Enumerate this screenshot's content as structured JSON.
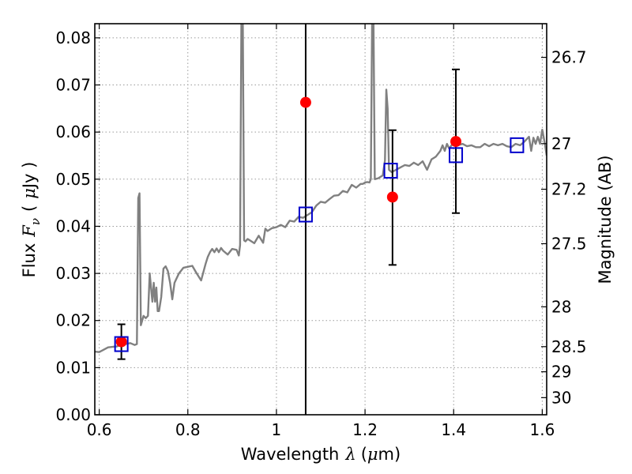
{
  "chart_data": {
    "type": "scatter",
    "xlabel": {
      "prefix": "Wavelength",
      "symbol": "λ",
      "unit_open": "(",
      "unit_mu": "μ",
      "unit_rest": "m)"
    },
    "ylabel": {
      "prefix": "Flux",
      "symbol": "F",
      "symbol_sub": "ν",
      "unit_open": "(",
      "unit_mu": "μ",
      "unit_rest": "Jy )"
    },
    "y2label": "Magnitude (AB)",
    "xlim": [
      0.59,
      1.61
    ],
    "ylim": [
      0.0,
      0.083
    ],
    "grid": true,
    "x_ticks": [
      {
        "value": 0.6,
        "label": "0.6"
      },
      {
        "value": 0.8,
        "label": "0.8"
      },
      {
        "value": 1.0,
        "label": "1"
      },
      {
        "value": 1.2,
        "label": "1.2"
      },
      {
        "value": 1.4,
        "label": "1.4"
      },
      {
        "value": 1.6,
        "label": "1.6"
      }
    ],
    "y_ticks": [
      {
        "value": 0.0,
        "label": "0.00"
      },
      {
        "value": 0.01,
        "label": "0.01"
      },
      {
        "value": 0.02,
        "label": "0.02"
      },
      {
        "value": 0.03,
        "label": "0.03"
      },
      {
        "value": 0.04,
        "label": "0.04"
      },
      {
        "value": 0.05,
        "label": "0.05"
      },
      {
        "value": 0.06,
        "label": "0.06"
      },
      {
        "value": 0.07,
        "label": "0.07"
      },
      {
        "value": 0.08,
        "label": "0.08"
      }
    ],
    "y2_ticks": [
      {
        "value": 26.7,
        "label": "26.7"
      },
      {
        "value": 27.0,
        "label": "27"
      },
      {
        "value": 27.2,
        "label": "27.2"
      },
      {
        "value": 27.5,
        "label": "27.5"
      },
      {
        "value": 28.0,
        "label": "28"
      },
      {
        "value": 28.5,
        "label": "28.5"
      },
      {
        "value": 29.0,
        "label": "29"
      },
      {
        "value": 30.0,
        "label": "30"
      }
    ],
    "vertical_line_x": 1.066,
    "sed_model": [
      [
        0.59,
        0.0134
      ],
      [
        0.6,
        0.0133
      ],
      [
        0.61,
        0.0138
      ],
      [
        0.62,
        0.0143
      ],
      [
        0.63,
        0.0144
      ],
      [
        0.64,
        0.0145
      ],
      [
        0.65,
        0.0149
      ],
      [
        0.66,
        0.015
      ],
      [
        0.67,
        0.0152
      ],
      [
        0.68,
        0.0148
      ],
      [
        0.685,
        0.015
      ],
      [
        0.688,
        0.046
      ],
      [
        0.691,
        0.047
      ],
      [
        0.694,
        0.019
      ],
      [
        0.7,
        0.021
      ],
      [
        0.705,
        0.0205
      ],
      [
        0.71,
        0.021
      ],
      [
        0.714,
        0.03
      ],
      [
        0.717,
        0.027
      ],
      [
        0.72,
        0.024
      ],
      [
        0.723,
        0.028
      ],
      [
        0.726,
        0.024
      ],
      [
        0.729,
        0.027
      ],
      [
        0.732,
        0.022
      ],
      [
        0.735,
        0.022
      ],
      [
        0.74,
        0.025
      ],
      [
        0.745,
        0.031
      ],
      [
        0.75,
        0.0315
      ],
      [
        0.755,
        0.0305
      ],
      [
        0.76,
        0.028
      ],
      [
        0.765,
        0.0245
      ],
      [
        0.77,
        0.028
      ],
      [
        0.775,
        0.029
      ],
      [
        0.78,
        0.03
      ],
      [
        0.79,
        0.0312
      ],
      [
        0.8,
        0.0314
      ],
      [
        0.81,
        0.0316
      ],
      [
        0.82,
        0.03
      ],
      [
        0.83,
        0.0285
      ],
      [
        0.84,
        0.032
      ],
      [
        0.845,
        0.0335
      ],
      [
        0.85,
        0.0345
      ],
      [
        0.855,
        0.0352
      ],
      [
        0.86,
        0.0345
      ],
      [
        0.865,
        0.0353
      ],
      [
        0.87,
        0.0345
      ],
      [
        0.875,
        0.0354
      ],
      [
        0.88,
        0.0348
      ],
      [
        0.89,
        0.034
      ],
      [
        0.9,
        0.0352
      ],
      [
        0.91,
        0.035
      ],
      [
        0.915,
        0.0338
      ],
      [
        0.918,
        0.036
      ],
      [
        0.921,
        0.085
      ],
      [
        0.924,
        0.085
      ],
      [
        0.927,
        0.037
      ],
      [
        0.93,
        0.0368
      ],
      [
        0.935,
        0.0373
      ],
      [
        0.94,
        0.037
      ],
      [
        0.95,
        0.0364
      ],
      [
        0.96,
        0.038
      ],
      [
        0.97,
        0.0365
      ],
      [
        0.975,
        0.0395
      ],
      [
        0.98,
        0.039
      ],
      [
        0.99,
        0.0396
      ],
      [
        1.0,
        0.0398
      ],
      [
        1.01,
        0.0403
      ],
      [
        1.02,
        0.0398
      ],
      [
        1.03,
        0.0412
      ],
      [
        1.04,
        0.041
      ],
      [
        1.05,
        0.042
      ],
      [
        1.06,
        0.0418
      ],
      [
        1.07,
        0.0424
      ],
      [
        1.08,
        0.043
      ],
      [
        1.09,
        0.0444
      ],
      [
        1.1,
        0.0452
      ],
      [
        1.11,
        0.045
      ],
      [
        1.12,
        0.0458
      ],
      [
        1.13,
        0.0465
      ],
      [
        1.14,
        0.0466
      ],
      [
        1.15,
        0.0475
      ],
      [
        1.16,
        0.0472
      ],
      [
        1.17,
        0.0488
      ],
      [
        1.18,
        0.0482
      ],
      [
        1.19,
        0.049
      ],
      [
        1.195,
        0.049
      ],
      [
        1.2,
        0.0493
      ],
      [
        1.205,
        0.0494
      ],
      [
        1.21,
        0.0493
      ],
      [
        1.213,
        0.05
      ],
      [
        1.216,
        0.085
      ],
      [
        1.219,
        0.085
      ],
      [
        1.222,
        0.05
      ],
      [
        1.23,
        0.0502
      ],
      [
        1.24,
        0.0508
      ],
      [
        1.245,
        0.054
      ],
      [
        1.248,
        0.069
      ],
      [
        1.251,
        0.065
      ],
      [
        1.254,
        0.052
      ],
      [
        1.26,
        0.0515
      ],
      [
        1.27,
        0.052
      ],
      [
        1.28,
        0.0525
      ],
      [
        1.29,
        0.053
      ],
      [
        1.3,
        0.0528
      ],
      [
        1.31,
        0.0535
      ],
      [
        1.32,
        0.053
      ],
      [
        1.33,
        0.0538
      ],
      [
        1.34,
        0.052
      ],
      [
        1.35,
        0.0542
      ],
      [
        1.36,
        0.0548
      ],
      [
        1.37,
        0.056
      ],
      [
        1.375,
        0.0572
      ],
      [
        1.38,
        0.056
      ],
      [
        1.385,
        0.0575
      ],
      [
        1.39,
        0.0565
      ],
      [
        1.4,
        0.0578
      ],
      [
        1.41,
        0.0572
      ],
      [
        1.42,
        0.0575
      ],
      [
        1.43,
        0.057
      ],
      [
        1.44,
        0.0572
      ],
      [
        1.45,
        0.0568
      ],
      [
        1.46,
        0.0568
      ],
      [
        1.47,
        0.0575
      ],
      [
        1.48,
        0.057
      ],
      [
        1.49,
        0.0575
      ],
      [
        1.5,
        0.0572
      ],
      [
        1.51,
        0.0575
      ],
      [
        1.52,
        0.057
      ],
      [
        1.53,
        0.0568
      ],
      [
        1.54,
        0.0575
      ],
      [
        1.55,
        0.0572
      ],
      [
        1.56,
        0.058
      ],
      [
        1.57,
        0.059
      ],
      [
        1.575,
        0.056
      ],
      [
        1.58,
        0.0588
      ],
      [
        1.585,
        0.0575
      ],
      [
        1.59,
        0.059
      ],
      [
        1.595,
        0.0575
      ],
      [
        1.6,
        0.0605
      ],
      [
        1.605,
        0.058
      ],
      [
        1.61,
        0.055
      ]
    ],
    "observed_flux": [
      {
        "x": 0.65,
        "y": 0.0155,
        "yerr_low": 0.0118,
        "yerr_high": 0.0192
      },
      {
        "x": 1.066,
        "y": 0.0663
      },
      {
        "x": 1.262,
        "y": 0.0462,
        "yerr_low": 0.0318,
        "yerr_high": 0.0604
      },
      {
        "x": 1.405,
        "y": 0.058,
        "yerr_low": 0.0428,
        "yerr_high": 0.0733
      }
    ],
    "model_band_flux": [
      {
        "x": 0.65,
        "y": 0.015
      },
      {
        "x": 1.066,
        "y": 0.0425
      },
      {
        "x": 1.258,
        "y": 0.0518
      },
      {
        "x": 1.405,
        "y": 0.0551
      },
      {
        "x": 1.543,
        "y": 0.0572
      }
    ],
    "colors": {
      "sed_line": "#808080",
      "observed": "#ff0000",
      "model_band": "#0000cc",
      "axes": "#000000",
      "grid": "#9a9a9a"
    }
  }
}
